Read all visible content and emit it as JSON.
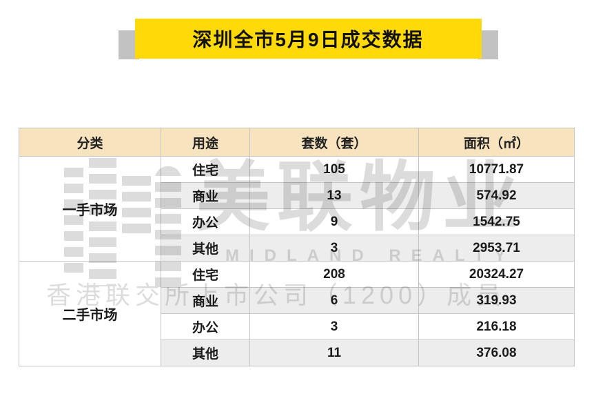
{
  "banner": {
    "title": "深圳全市5月9日成交数据"
  },
  "table": {
    "headers": [
      "分类",
      "用途",
      "套数（套）",
      "面积（㎡）"
    ],
    "groups": [
      {
        "category": "一手市场",
        "rows": [
          {
            "usage": "住宅",
            "units": "105",
            "area": "10771.87"
          },
          {
            "usage": "商业",
            "units": "13",
            "area": "574.92"
          },
          {
            "usage": "办公",
            "units": "9",
            "area": "1542.75"
          },
          {
            "usage": "其他",
            "units": "3",
            "area": "2953.71"
          }
        ]
      },
      {
        "category": "二手市场",
        "rows": [
          {
            "usage": "住宅",
            "units": "208",
            "area": "20324.27"
          },
          {
            "usage": "商业",
            "units": "6",
            "area": "319.93"
          },
          {
            "usage": "办公",
            "units": "3",
            "area": "216.18"
          },
          {
            "usage": "其他",
            "units": "11",
            "area": "376.08"
          }
        ]
      }
    ]
  },
  "watermark": {
    "brand_cn": "美联物业",
    "brand_en": "MIDLAND REALTY",
    "tagline": "香港联交所上市公司（1200）成员"
  },
  "colors": {
    "banner_yellow": "#ffd908",
    "ribbon_gray": "#c2c2c2",
    "header_bg": "#f7e3bd",
    "row_alt_bg": "#ededed",
    "grid_border": "#c4c4c4",
    "watermark_gray": "#dcdcdc"
  },
  "chart_data": {
    "type": "table",
    "title": "深圳全市5月9日成交数据",
    "columns": [
      "分类",
      "用途",
      "套数（套）",
      "面积（㎡）"
    ],
    "rows": [
      [
        "一手市场",
        "住宅",
        105,
        10771.87
      ],
      [
        "一手市场",
        "商业",
        13,
        574.92
      ],
      [
        "一手市场",
        "办公",
        9,
        1542.75
      ],
      [
        "一手市场",
        "其他",
        3,
        2953.71
      ],
      [
        "二手市场",
        "住宅",
        208,
        20324.27
      ],
      [
        "二手市场",
        "商业",
        6,
        319.93
      ],
      [
        "二手市场",
        "办公",
        3,
        216.18
      ],
      [
        "二手市场",
        "其他",
        11,
        376.08
      ]
    ]
  }
}
